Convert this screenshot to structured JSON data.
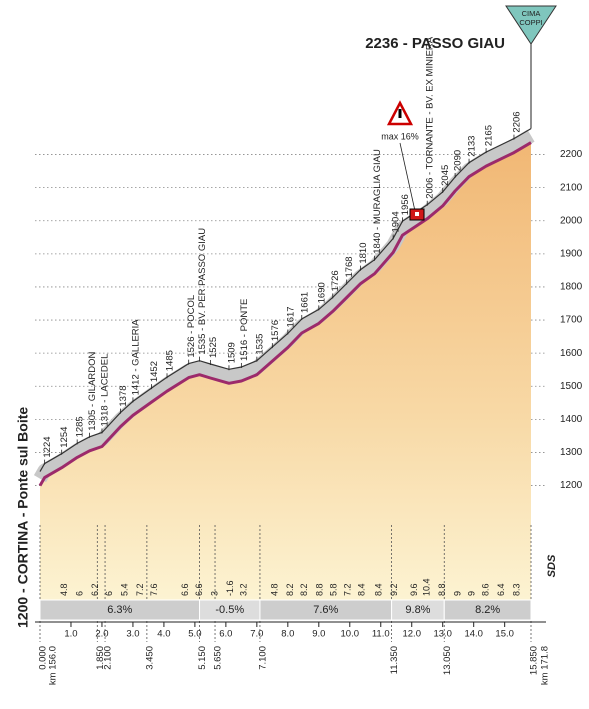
{
  "chart_data": {
    "type": "profile",
    "title": "2236 - PASSO GIAU",
    "badge": [
      "CIMA",
      "COPPI"
    ],
    "start_label": "1200 - CORTINA - Ponte sul Boite",
    "start_km_label": "km 156.0",
    "end_km_label": "km 171.8",
    "annotation": "max 16%",
    "logo": "SDS",
    "profile": {
      "x": [
        0,
        0.15,
        0.7,
        1.2,
        1.6,
        2.0,
        2.6,
        3.0,
        3.6,
        4.1,
        4.8,
        5.15,
        5.5,
        6.1,
        6.5,
        7.0,
        7.5,
        8.0,
        8.45,
        9.0,
        9.45,
        9.9,
        10.35,
        10.8,
        11.4,
        11.7,
        12.5,
        13.0,
        13.4,
        13.85,
        14.4,
        15.3,
        15.85
      ],
      "values": [
        1200,
        1224,
        1254,
        1285,
        1305,
        1318,
        1378,
        1412,
        1452,
        1485,
        1526,
        1535,
        1525,
        1509,
        1516,
        1535,
        1576,
        1617,
        1661,
        1690,
        1726,
        1768,
        1810,
        1840,
        1904,
        1956,
        2006,
        2045,
        2090,
        2133,
        2165,
        2206,
        2236
      ],
      "value_labels": [
        null,
        "1224",
        "1254",
        "1285",
        "1305 - GILARDON",
        "1318 - LACEDEL",
        "1378",
        "1412 - GALLERIA",
        "1452",
        "1485",
        "1526 - POCOL",
        "1535 - BV. PER PASSO GIAU",
        "1525",
        "1509",
        "1516 - PONTE",
        "1535",
        "1576",
        "1617",
        "1661",
        "1690",
        "1726",
        "1768",
        "1810",
        "1840 - MURAGLIA GIAU",
        "1904",
        "1956",
        "2006 - TORNANTE - BV. EX MINIERA",
        "2045",
        "2090",
        "2133",
        "2165",
        "2206",
        null
      ]
    },
    "xlim": [
      0,
      15.85
    ],
    "ylim": [
      960,
      2250
    ],
    "yticks": [
      1200,
      1300,
      1400,
      1500,
      1600,
      1700,
      1800,
      1900,
      2000,
      2100,
      2200
    ],
    "grid": true,
    "xticks": [
      {
        "value": 1,
        "label": "1.0"
      },
      {
        "value": 2,
        "label": "2.0"
      },
      {
        "value": 3,
        "label": "3.0"
      },
      {
        "value": 4,
        "label": "4.0"
      },
      {
        "value": 5,
        "label": "5.0"
      },
      {
        "value": 6,
        "label": "6.0"
      },
      {
        "value": 7,
        "label": "7.0"
      },
      {
        "value": 8,
        "label": "8.0"
      },
      {
        "value": 9,
        "label": "9.0"
      },
      {
        "value": 10,
        "label": "10.0"
      },
      {
        "value": 11,
        "label": "11.0"
      },
      {
        "value": 12,
        "label": "12.0"
      },
      {
        "value": 13,
        "label": "13.0"
      },
      {
        "value": 14,
        "label": "14.0"
      },
      {
        "value": 15,
        "label": "15.0"
      }
    ],
    "km_marks": [
      {
        "value": 0,
        "label": "0.000"
      },
      {
        "value": 1.85,
        "label": "1.850"
      },
      {
        "value": 2.1,
        "label": "2.100"
      },
      {
        "value": 3.45,
        "label": "3.450"
      },
      {
        "value": 5.15,
        "label": "5.150"
      },
      {
        "value": 5.65,
        "label": "5.650"
      },
      {
        "value": 7.1,
        "label": "7.100"
      },
      {
        "value": 11.35,
        "label": "11.350"
      },
      {
        "value": 13.05,
        "label": "13.050"
      },
      {
        "value": 15.85,
        "label": "15.850"
      }
    ],
    "gradients": {
      "x": [
        0.7,
        1.2,
        1.7,
        2.15,
        2.65,
        3.15,
        3.6,
        4.6,
        5.05,
        5.55,
        6.05,
        6.5,
        7.5,
        8.0,
        8.45,
        8.95,
        9.4,
        9.85,
        10.3,
        10.85,
        11.35,
        12.0,
        12.4,
        12.9,
        13.4,
        13.85,
        14.3,
        14.8,
        15.3
      ],
      "values": [
        4.8,
        6.0,
        6.2,
        6.0,
        5.4,
        7.2,
        7.6,
        6.6,
        6.6,
        3.0,
        -1.6,
        3.2,
        4.8,
        8.2,
        8.2,
        8.8,
        5.8,
        7.2,
        8.4,
        8.4,
        9.2,
        9.6,
        10.4,
        8.8,
        9.0,
        9.0,
        8.6,
        6.4,
        8.3
      ]
    },
    "sections": [
      {
        "from": 0,
        "to": 5.15,
        "value": 6.3,
        "label": "6.3%"
      },
      {
        "from": 5.15,
        "to": 7.1,
        "value": -0.5,
        "label": "-0.5%"
      },
      {
        "from": 7.1,
        "to": 11.35,
        "value": 7.6,
        "label": "7.6%"
      },
      {
        "from": 11.35,
        "to": 13.05,
        "value": 9.8,
        "label": "9.8%"
      },
      {
        "from": 13.05,
        "to": 15.85,
        "value": 8.2,
        "label": "8.2%"
      }
    ],
    "colors": {
      "profile": "#9c2a6b",
      "band": "#c8c8c8",
      "sections": [
        "#cdcdcd",
        "#dddddd"
      ]
    }
  }
}
